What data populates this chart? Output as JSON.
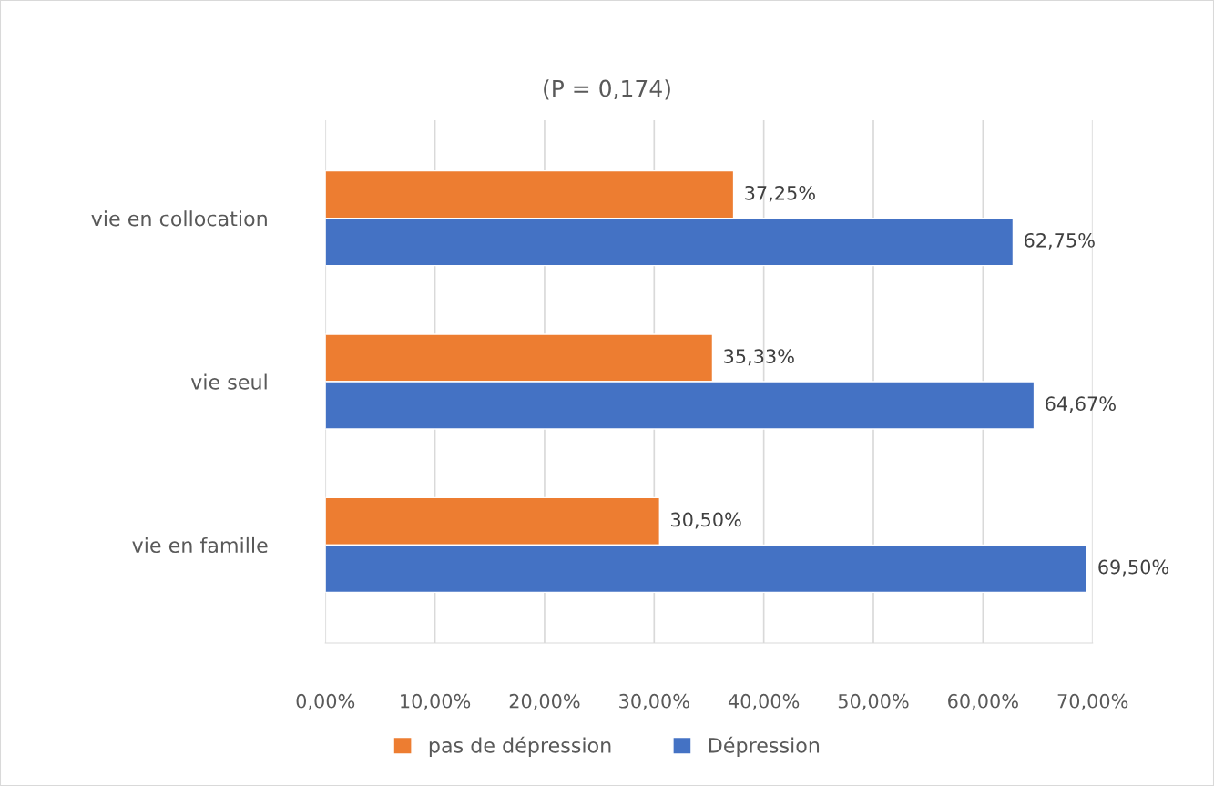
{
  "chart_data": {
    "type": "bar",
    "orientation": "horizontal",
    "title": "(P = 0,174)",
    "categories": [
      "vie en collocation",
      "vie seul",
      "vie en famille"
    ],
    "series": [
      {
        "name": "pas de dépression",
        "color": "#ed7d31",
        "values": [
          37.25,
          35.33,
          30.5
        ],
        "value_labels": [
          "37,25%",
          "35,33%",
          "30,50%"
        ]
      },
      {
        "name": "Dépression",
        "color": "#4472c4",
        "values": [
          62.75,
          64.67,
          69.5
        ],
        "value_labels": [
          "62,75%",
          "64,67%",
          "69,50%"
        ]
      }
    ],
    "xlim": [
      0,
      70
    ],
    "xticks": [
      {
        "value": 0,
        "label": "0,00%"
      },
      {
        "value": 10,
        "label": "10,00%"
      },
      {
        "value": 20,
        "label": "20,00%"
      },
      {
        "value": 30,
        "label": "30,00%"
      },
      {
        "value": 40,
        "label": "40,00%"
      },
      {
        "value": 50,
        "label": "50,00%"
      },
      {
        "value": 60,
        "label": "60,00%"
      },
      {
        "value": 70,
        "label": "70,00%"
      }
    ],
    "grid": "x",
    "legend": "bottom"
  }
}
